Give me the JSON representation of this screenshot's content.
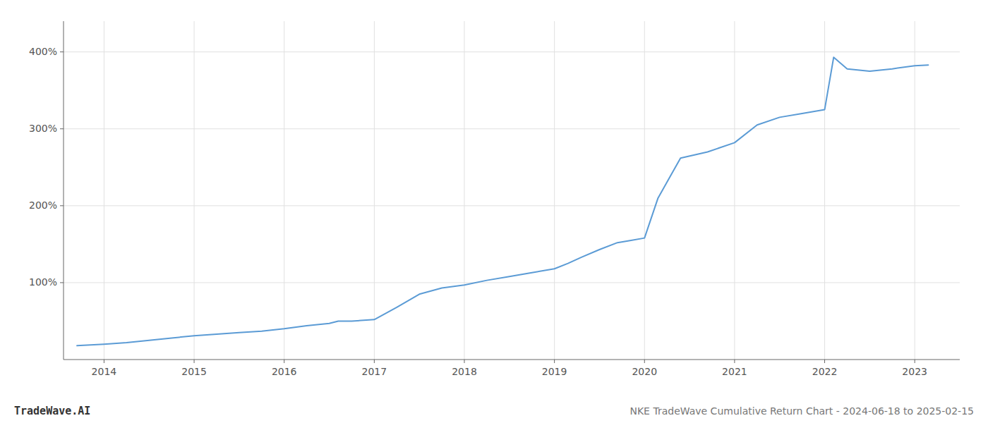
{
  "chart_data": {
    "type": "line",
    "title": "NKE TradeWave Cumulative Return Chart - 2024-06-18 to 2025-02-15",
    "annotations": [
      "TradeWave.AI"
    ],
    "x": [
      2013.7,
      2014.0,
      2014.25,
      2014.5,
      2014.75,
      2015.0,
      2015.25,
      2015.5,
      2015.75,
      2016.0,
      2016.25,
      2016.5,
      2016.6,
      2016.75,
      2017.0,
      2017.25,
      2017.5,
      2017.75,
      2018.0,
      2018.25,
      2018.5,
      2018.75,
      2019.0,
      2019.15,
      2019.3,
      2019.5,
      2019.7,
      2019.85,
      2020.0,
      2020.15,
      2020.4,
      2020.7,
      2021.0,
      2021.25,
      2021.5,
      2021.75,
      2022.0,
      2022.1,
      2022.25,
      2022.5,
      2022.75,
      2023.0,
      2023.15
    ],
    "values": [
      18,
      20,
      22,
      25,
      28,
      31,
      33,
      35,
      37,
      40,
      44,
      47,
      50,
      50,
      52,
      68,
      85,
      93,
      97,
      103,
      108,
      113,
      118,
      125,
      133,
      143,
      152,
      155,
      158,
      210,
      262,
      270,
      282,
      305,
      315,
      320,
      325,
      393,
      378,
      375,
      378,
      382,
      383
    ],
    "color": "#5b9bd5",
    "xlim": [
      2013.55,
      2023.5
    ],
    "xticks": [
      2014,
      2015,
      2016,
      2017,
      2018,
      2019,
      2020,
      2021,
      2022,
      2023
    ],
    "ylim": [
      0,
      440
    ],
    "yticks": [
      {
        "value": 100,
        "label": "100%"
      },
      {
        "value": 200,
        "label": "200%"
      },
      {
        "value": 300,
        "label": "300%"
      },
      {
        "value": 400,
        "label": "400%"
      }
    ],
    "grid": true
  }
}
